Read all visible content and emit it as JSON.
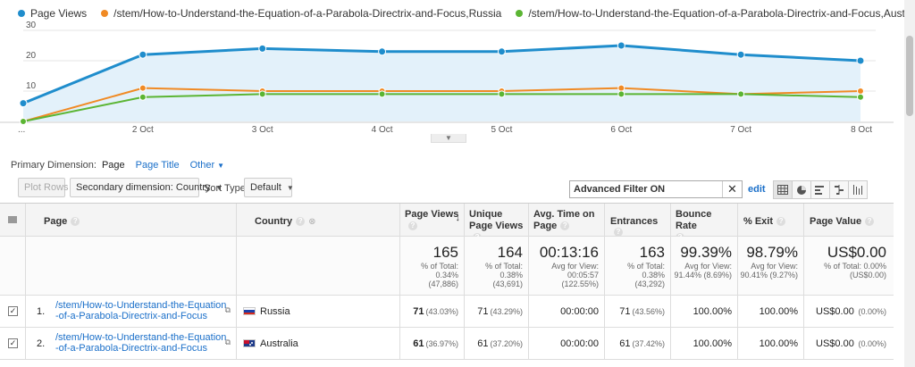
{
  "colors": {
    "page_views": "#1f8dcc",
    "russia": "#f08a24",
    "australia": "#5bb533",
    "link": "#1a6fc9"
  },
  "legend": [
    {
      "label": "Page Views",
      "color": "#1f8dcc"
    },
    {
      "label": "/stem/How-to-Understand-the-Equation-of-a-Parabola-Directrix-and-Focus,Russia",
      "color": "#f08a24"
    },
    {
      "label": "/stem/How-to-Understand-the-Equation-of-a-Parabola-Directrix-and-Focus,Australia",
      "color": "#5bb533"
    }
  ],
  "chart_data": {
    "type": "line",
    "x": [
      "...",
      "2 Oct",
      "3 Oct",
      "4 Oct",
      "5 Oct",
      "6 Oct",
      "7 Oct",
      "8 Oct"
    ],
    "y_ticks": [
      "30",
      "20",
      "10"
    ],
    "ylim": [
      0,
      30
    ],
    "series": [
      {
        "name": "Page Views",
        "values": [
          6,
          22,
          24,
          23,
          23,
          25,
          22,
          20
        ]
      },
      {
        "name": "/stem/How-to-Understand-the-Equation-of-a-Parabola-Directrix-and-Focus,Russia",
        "values": [
          0,
          11,
          10,
          10,
          10,
          11,
          9,
          10
        ]
      },
      {
        "name": "/stem/How-to-Understand-the-Equation-of-a-Parabola-Directrix-and-Focus,Australia",
        "values": [
          0,
          8,
          9,
          9,
          9,
          9,
          9,
          8
        ]
      }
    ]
  },
  "dimension": {
    "label": "Primary Dimension:",
    "active": "Page",
    "page_title": "Page Title",
    "other": "Other"
  },
  "toolbar": {
    "plot_rows": "Plot Rows",
    "secondary": "Secondary dimension: Country",
    "sort_label": "Sort Type:",
    "sort_value": "Default",
    "filter_text": "Advanced Filter ON",
    "edit": "edit"
  },
  "headers": {
    "page": "Page",
    "country": "Country",
    "page_views": "Page Views",
    "unique": "Unique Page Views",
    "avg_time": "Avg. Time on Page",
    "entrances": "Entrances",
    "bounce": "Bounce Rate",
    "exit": "% Exit",
    "value": "Page Value"
  },
  "totals": {
    "page_views": {
      "big": "165",
      "l1": "% of Total:",
      "l2": "0.34%",
      "l3": "(47,886)"
    },
    "unique": {
      "big": "164",
      "l1": "% of Total:",
      "l2": "0.38%",
      "l3": "(43,691)"
    },
    "avg_time": {
      "big": "00:13:16",
      "l1": "Avg for View:",
      "l2": "00:05:57",
      "l3": "(122.55%)"
    },
    "entrances": {
      "big": "163",
      "l1": "% of Total:",
      "l2": "0.38%",
      "l3": "(43,292)"
    },
    "bounce": {
      "big": "99.39%",
      "l1": "Avg for View:",
      "l2": "91.44% (8.69%)",
      "l3": ""
    },
    "exit": {
      "big": "98.79%",
      "l1": "Avg for View:",
      "l2": "90.41% (9.27%)",
      "l3": ""
    },
    "value": {
      "big": "US$0.00",
      "l1": "% of Total: 0.00%",
      "l2": "(US$0.00)",
      "l3": ""
    }
  },
  "rows": [
    {
      "index": "1.",
      "page_line1": "/stem/How-to-Understand-the-Equation",
      "page_line2": "-of-a-Parabola-Directrix-and-Focus",
      "country": "Russia",
      "page_views": "71",
      "page_views_pct": "(43.03%)",
      "unique": "71",
      "unique_pct": "(43.29%)",
      "avg_time": "00:00:00",
      "entrances": "71",
      "entrances_pct": "(43.56%)",
      "bounce": "100.00%",
      "exit": "100.00%",
      "value": "US$0.00",
      "value_pct": "(0.00%)"
    },
    {
      "index": "2.",
      "page_line1": "/stem/How-to-Understand-the-Equation",
      "page_line2": "-of-a-Parabola-Directrix-and-Focus",
      "country": "Australia",
      "page_views": "61",
      "page_views_pct": "(36.97%)",
      "unique": "61",
      "unique_pct": "(37.20%)",
      "avg_time": "00:00:00",
      "entrances": "61",
      "entrances_pct": "(37.42%)",
      "bounce": "100.00%",
      "exit": "100.00%",
      "value": "US$0.00",
      "value_pct": "(0.00%)"
    }
  ]
}
